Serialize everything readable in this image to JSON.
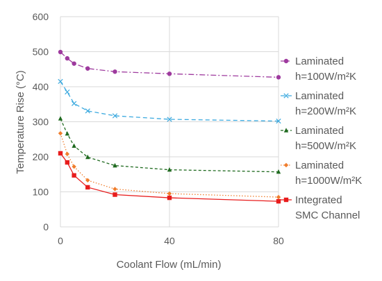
{
  "chart_data": {
    "type": "line",
    "title": "",
    "xlabel": "Coolant Flow (mL/min)",
    "ylabel": "Temperature Rise (°C)",
    "xlim": [
      0,
      80
    ],
    "ylim": [
      0,
      600
    ],
    "xticks": [
      0,
      40,
      80
    ],
    "yticks": [
      0,
      100,
      200,
      300,
      400,
      500,
      600
    ],
    "grid": "vertical and horizontal",
    "legend_position": "right",
    "x": [
      0,
      2.5,
      5,
      10,
      20,
      40,
      80
    ],
    "series": [
      {
        "name_lines": [
          "Laminated",
          "h=100W/m²K"
        ],
        "color": "#9e3a9e",
        "dash": "dashdot",
        "marker": "circle",
        "values": [
          499,
          481,
          466,
          452,
          443,
          437,
          427
        ]
      },
      {
        "name_lines": [
          "Laminated",
          "h=200W/m²K"
        ],
        "color": "#3aa9df",
        "dash": "dash",
        "marker": "x",
        "values": [
          415,
          385,
          352,
          331,
          317,
          307,
          302
        ]
      },
      {
        "name_lines": [
          "Laminated",
          "h=500W/m²K"
        ],
        "color": "#1f6a1f",
        "dash": "shortdash",
        "marker": "triangle",
        "values": [
          309,
          266,
          231,
          199,
          175,
          163,
          157
        ]
      },
      {
        "name_lines": [
          "Laminated",
          "h=1000W/m²K"
        ],
        "color": "#f07d2c",
        "dash": "dot",
        "marker": "diamond",
        "values": [
          267,
          208,
          172,
          133,
          108,
          95,
          85
        ]
      },
      {
        "name_lines": [
          "Integrated",
          "SMC Channel"
        ],
        "color": "#e81c1c",
        "dash": "solid",
        "marker": "square",
        "values": [
          210,
          184,
          147,
          113,
          92,
          83,
          73
        ]
      }
    ]
  }
}
